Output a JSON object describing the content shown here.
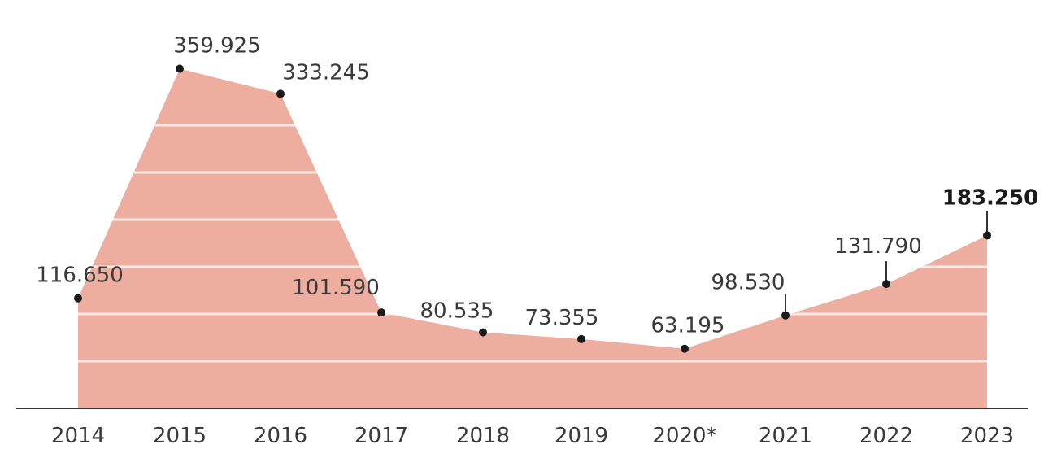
{
  "chart_data": {
    "type": "area",
    "x": [
      "2014",
      "2015",
      "2016",
      "2017",
      "2018",
      "2019",
      "2020*",
      "2021",
      "2022",
      "2023"
    ],
    "series": [
      {
        "values": [
          116650,
          359925,
          333245,
          101590,
          80535,
          73355,
          63195,
          98530,
          131790,
          183250
        ],
        "value_labels": [
          "116.650",
          "359.925",
          "333.245",
          "101.590",
          "80.535",
          "73.355",
          "63.195",
          "98.530",
          "131.790",
          "183.250"
        ],
        "highlight_last": true
      }
    ],
    "ylim": [
      0,
      400000
    ],
    "grid": true,
    "colors": {
      "area_fill": "#edaea0",
      "gridline": "#f7ddd4",
      "marker": "#1a1a1a",
      "axis": "#333333"
    }
  }
}
